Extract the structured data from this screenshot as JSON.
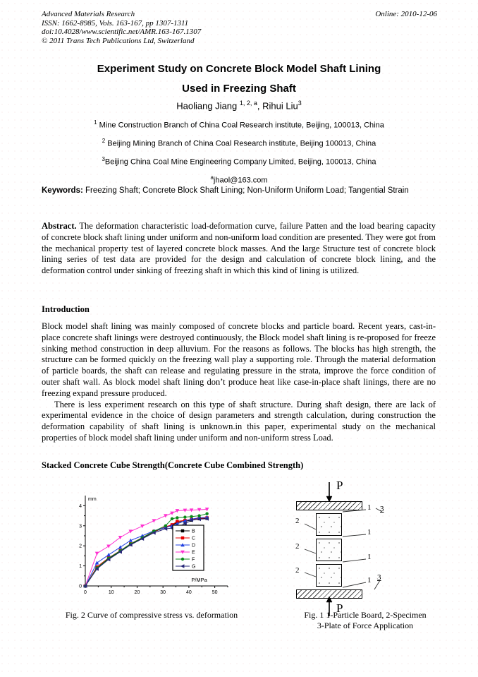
{
  "header": {
    "journal": "Advanced Materials Research",
    "issn_line": "ISSN: 1662-8985, Vols. 163-167, pp 1307-1311",
    "doi_line": "doi:10.4028/www.scientific.net/AMR.163-167.1307",
    "copyright_line": "© 2011 Trans Tech Publications Ltd, Switzerland",
    "online_date": "Online: 2010-12-06"
  },
  "title": {
    "line1": "Experiment Study on Concrete Block Model Shaft Lining",
    "line2": "Used in Freezing Shaft"
  },
  "authors": {
    "name1": "Haoliang Jiang ",
    "sup1": "1, 2, a",
    "name2": ", Rihui Liu",
    "sup2": "3"
  },
  "affiliations": [
    {
      "sup": "1",
      "text": " Mine Construction Branch of China Coal Research institute, Beijing, 100013, China"
    },
    {
      "sup": "2",
      "text": " Beijing Mining Branch of China Coal Research institute, Beijing 100013, China"
    },
    {
      "sup": "3",
      "text": "Beijing China Coal Mine Engineering Company Limited, Beijing, 100013, China"
    },
    {
      "sup": "a",
      "text": "jhaol@163.com"
    }
  ],
  "keywords": {
    "label": "Keywords:",
    "text": " Freezing Shaft; Concrete Block Shaft Lining; Non-Uniform Uniform Load; Tangential Strain"
  },
  "abstract": {
    "label": "Abstract.",
    "text": " The deformation characteristic load-deformation curve, failure Patten and the load bearing capacity of concrete block shaft lining under uniform and non-uniform load condition are presented. They were got from the mechanical property test of layered concrete block masses. And the large Structure test of concrete block lining series of test data are provided for the design and calculation of concrete block lining, and the deformation control under sinking of freezing shaft in which this kind of lining is utilized."
  },
  "introduction": {
    "heading": "Introduction",
    "para1": "Block model shaft lining was mainly composed of concrete blocks and particle board. Recent years, cast-in-place concrete shaft linings were destroyed continuously, the Block model shaft lining is re-proposed for freeze sinking method construction in deep alluvium. For the reasons as follows. The blocks has high strength, the structure can be formed quickly on the freezing wall play a supporting role. Through the material deformation of particle boards, the shaft can release and regulating pressure in the strata, improve the force condition of outer shaft wall. As block model shaft lining don’t produce heat like case-in-place shaft linings, there are no freezing expand pressure produced.",
    "para2": "There is less experiment research on this type of shaft structure. During shaft design, there are lack of experimental evidence in the choice of design parameters and strength calculation, during construction the deformation capability of shaft lining is unknown.in this paper, experimental study on the mechanical properties of block model shaft lining under uniform and non-uniform stress Load."
  },
  "section2": {
    "heading": "Stacked Concrete Cube Strength(Concrete Cube Combined Strength)"
  },
  "figures": {
    "fig2_caption": "Fig. 2 Curve of compressive stress vs. deformation",
    "fig1_caption1": "Fig. 1 1-Particle Board, 2-Specimen",
    "fig1_caption2": "3-Plate of Force Application",
    "force_label": "P",
    "label_board": "1",
    "label_specimen": "2",
    "label_plate": "3"
  },
  "chart_data": {
    "type": "line",
    "title": "",
    "xlabel": "P/MPa",
    "ylabel": "mm",
    "xlim": [
      0,
      55
    ],
    "ylim": [
      0,
      4.4
    ],
    "xticks": [
      0,
      10,
      20,
      30,
      40,
      50
    ],
    "yticks": [
      0,
      1,
      2,
      3,
      4
    ],
    "grid": false,
    "legend_position": "inside-right",
    "x": [
      0,
      4.5,
      9,
      13.5,
      17.5,
      22,
      26.5,
      31,
      33.5,
      35.5,
      38.5,
      41,
      44,
      47
    ],
    "series": [
      {
        "name": "B",
        "color": "#000000",
        "marker": "square",
        "values": [
          0,
          0.88,
          1.35,
          1.73,
          2.07,
          2.38,
          2.7,
          2.93,
          3.02,
          3.18,
          3.22,
          3.28,
          3.35,
          3.37
        ]
      },
      {
        "name": "C",
        "color": "#e80000",
        "marker": "square",
        "values": [
          0,
          0.95,
          1.4,
          1.76,
          2.1,
          2.41,
          2.72,
          2.95,
          3.05,
          3.22,
          3.27,
          3.32,
          3.37,
          3.4
        ]
      },
      {
        "name": "D",
        "color": "#2040e0",
        "marker": "triangle",
        "values": [
          0,
          1.15,
          1.55,
          1.93,
          2.27,
          2.5,
          2.75,
          2.92,
          3.0,
          3.1,
          3.25,
          3.33,
          3.4,
          3.42
        ]
      },
      {
        "name": "E",
        "color": "#ff30d0",
        "marker": "triangle-down",
        "values": [
          0,
          1.62,
          1.98,
          2.42,
          2.72,
          2.98,
          3.25,
          3.5,
          3.63,
          3.75,
          3.77,
          3.78,
          3.8,
          3.82
        ]
      },
      {
        "name": "F",
        "color": "#0a8a1a",
        "marker": "circle",
        "values": [
          0,
          0.9,
          1.38,
          1.75,
          2.1,
          2.4,
          2.73,
          3.0,
          3.35,
          3.4,
          3.43,
          3.46,
          3.5,
          3.6
        ]
      },
      {
        "name": "G",
        "color": "#282878",
        "marker": "triangle-left",
        "values": [
          0,
          0.85,
          1.32,
          1.7,
          2.05,
          2.35,
          2.65,
          2.85,
          2.88,
          2.95,
          3.1,
          3.28,
          3.33,
          3.35
        ]
      }
    ]
  }
}
